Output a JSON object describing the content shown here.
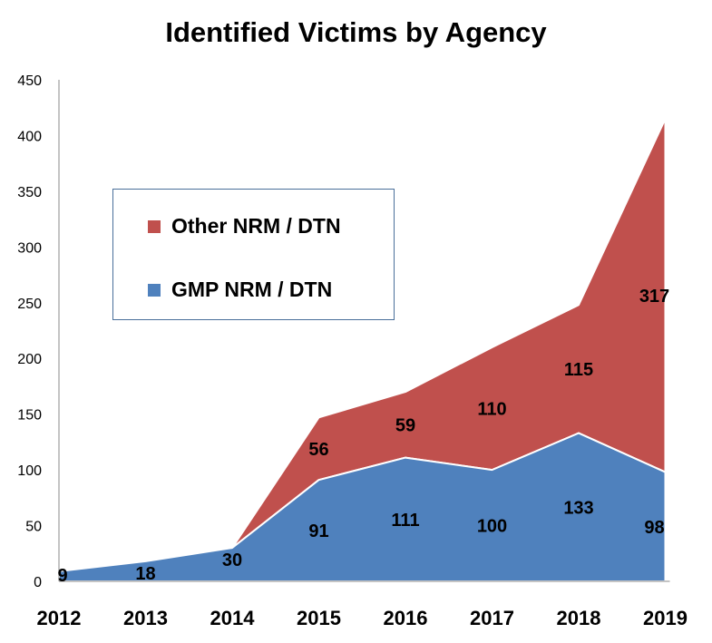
{
  "chart_data": {
    "type": "area",
    "stacked": true,
    "title": "Identified Victims by Agency",
    "categories": [
      "2012",
      "2013",
      "2014",
      "2015",
      "2016",
      "2017",
      "2018",
      "2019"
    ],
    "series": [
      {
        "name": "GMP NRM / DTN",
        "values": [
          9,
          18,
          30,
          91,
          111,
          100,
          133,
          98
        ],
        "color": "#4f81bd"
      },
      {
        "name": "Other NRM / DTN",
        "values": [
          0,
          0,
          0,
          56,
          59,
          110,
          115,
          317
        ],
        "color": "#c0504d"
      }
    ],
    "data_labels": {
      "GMP NRM / DTN": [
        "9",
        "18",
        "30",
        "91",
        "111",
        "100",
        "133",
        "98"
      ],
      "Other NRM / DTN": [
        "",
        "",
        "",
        "56",
        "59",
        "110",
        "115",
        "317"
      ]
    },
    "ylim": [
      0,
      450
    ],
    "yticks": [
      0,
      50,
      100,
      150,
      200,
      250,
      300,
      350,
      400,
      450
    ],
    "legend": {
      "position": "upper-left inside plot",
      "order": [
        "Other NRM / DTN",
        "GMP NRM / DTN"
      ]
    },
    "grid": false
  }
}
